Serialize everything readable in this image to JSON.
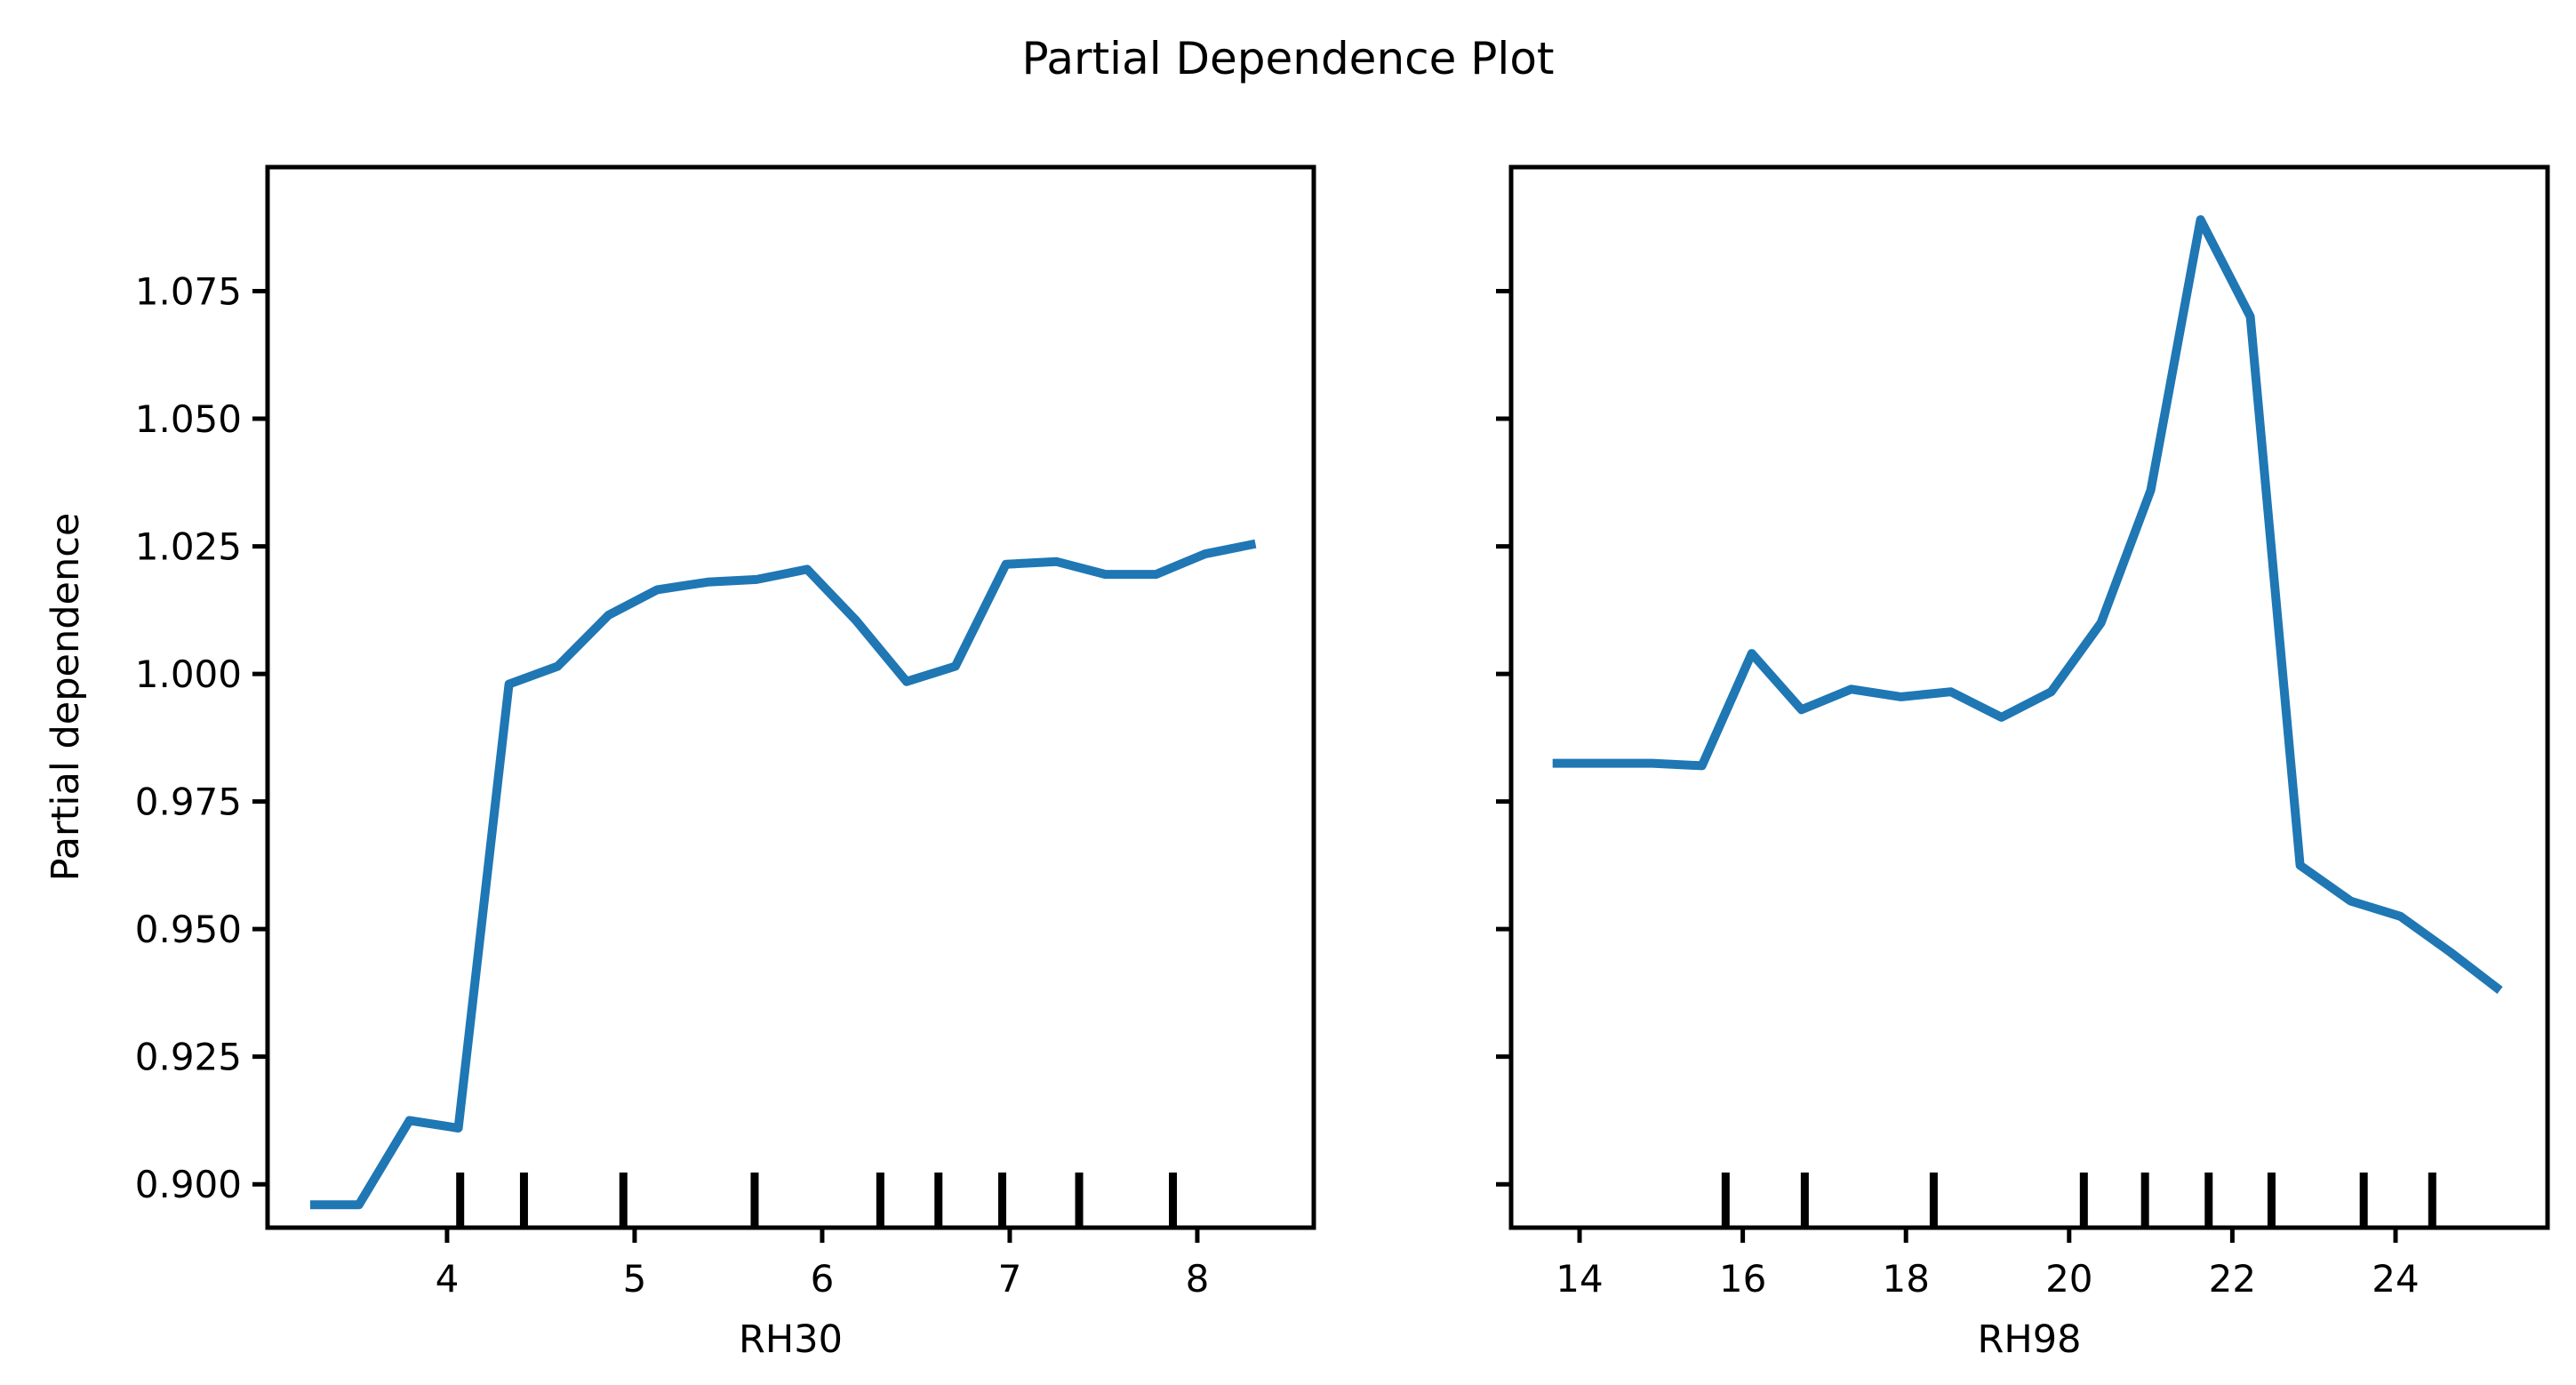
{
  "title": "Partial Dependence Plot",
  "colors": {
    "line": "#1f77b4",
    "axis": "#000000",
    "text": "#000000",
    "background": "#ffffff"
  },
  "chart_data": [
    {
      "type": "line",
      "panel": "left",
      "xlabel": "RH30",
      "ylabel": "Partial dependence",
      "x": [
        3.27,
        3.53,
        3.8,
        4.06,
        4.33,
        4.59,
        4.86,
        5.12,
        5.39,
        5.65,
        5.92,
        6.18,
        6.45,
        6.71,
        6.98,
        7.25,
        7.51,
        7.78,
        8.04,
        8.31
      ],
      "y": [
        0.896,
        0.896,
        0.9125,
        0.911,
        0.998,
        1.0015,
        1.0115,
        1.0165,
        1.018,
        1.0185,
        1.0205,
        1.0105,
        0.9985,
        1.0015,
        1.0215,
        1.022,
        1.0195,
        1.0195,
        1.0235,
        1.0255
      ],
      "decile_rug_x": [
        4.07,
        4.41,
        4.94,
        5.64,
        6.31,
        6.62,
        6.96,
        7.37,
        7.87
      ],
      "xticks": [
        4,
        5,
        6,
        7,
        8
      ],
      "xtick_labels": [
        "4",
        "5",
        "6",
        "7",
        "8"
      ],
      "yticks": [
        0.9,
        0.925,
        0.95,
        0.975,
        1.0,
        1.025,
        1.05,
        1.075
      ],
      "ytick_labels": [
        "0.900",
        "0.925",
        "0.950",
        "0.975",
        "1.000",
        "1.025",
        "1.050",
        "1.075"
      ],
      "show_ytick_labels": true,
      "xlim": [
        3.043,
        8.621
      ],
      "ylim": [
        0.8915,
        1.0993
      ],
      "grid": false,
      "legend": null
    },
    {
      "type": "line",
      "panel": "right",
      "xlabel": "RH98",
      "ylabel": "",
      "x": [
        13.67,
        14.28,
        14.89,
        15.5,
        16.11,
        16.72,
        17.33,
        17.94,
        18.55,
        19.17,
        19.78,
        20.39,
        21.0,
        21.61,
        22.22,
        22.83,
        23.45,
        24.06,
        24.67,
        25.28
      ],
      "y": [
        0.9825,
        0.9825,
        0.9825,
        0.982,
        1.004,
        0.993,
        0.997,
        0.9955,
        0.9965,
        0.9915,
        0.9965,
        1.01,
        1.036,
        1.089,
        1.07,
        0.9625,
        0.9555,
        0.9525,
        0.9455,
        0.938
      ],
      "decile_rug_x": [
        15.79,
        16.76,
        18.34,
        20.18,
        20.93,
        21.71,
        22.48,
        23.61,
        24.45
      ],
      "xticks": [
        14,
        16,
        18,
        20,
        22,
        24
      ],
      "xtick_labels": [
        "14",
        "16",
        "18",
        "20",
        "22",
        "24"
      ],
      "yticks": [
        0.9,
        0.925,
        0.95,
        0.975,
        1.0,
        1.025,
        1.05,
        1.075
      ],
      "ytick_labels": [],
      "show_ytick_labels": false,
      "xlim": [
        13.161,
        25.863
      ],
      "ylim": [
        0.8915,
        1.0993
      ],
      "grid": false,
      "legend": null
    }
  ]
}
